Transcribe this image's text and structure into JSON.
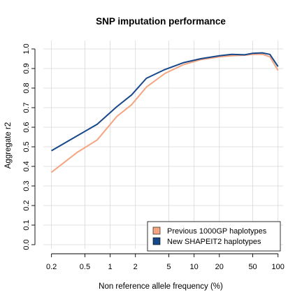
{
  "chart_data": {
    "type": "line",
    "title": "SNP imputation performance",
    "xlabel": "Non reference allele frequency (%)",
    "ylabel": "Aggregate r2",
    "x_scale": "log",
    "xlim": [
      0.2,
      100
    ],
    "ylim": [
      0,
      1
    ],
    "x_ticks": [
      {
        "value": 0.2,
        "label": "0.2"
      },
      {
        "value": 0.5,
        "label": "0.5"
      },
      {
        "value": 1,
        "label": "1"
      },
      {
        "value": 2,
        "label": "2"
      },
      {
        "value": 5,
        "label": "5"
      },
      {
        "value": 10,
        "label": "10"
      },
      {
        "value": 20,
        "label": "20"
      },
      {
        "value": 50,
        "label": "50"
      },
      {
        "value": 100,
        "label": "100"
      }
    ],
    "y_ticks": [
      {
        "value": 0,
        "label": "0.0"
      },
      {
        "value": 0.1,
        "label": "0.1"
      },
      {
        "value": 0.2,
        "label": "0.2"
      },
      {
        "value": 0.3,
        "label": "0.3"
      },
      {
        "value": 0.4,
        "label": "0.4"
      },
      {
        "value": 0.5,
        "label": "0.5"
      },
      {
        "value": 0.6,
        "label": "0.6"
      },
      {
        "value": 0.7,
        "label": "0.7"
      },
      {
        "value": 0.8,
        "label": "0.8"
      },
      {
        "value": 0.9,
        "label": "0.9"
      },
      {
        "value": 1,
        "label": "1.0"
      }
    ],
    "grid": true,
    "legend_position": "bottom-right",
    "series": [
      {
        "name": "Previous 1000GP haplotypes",
        "color": "#f4a582",
        "x": [
          0.2,
          0.4,
          0.7,
          1.2,
          1.8,
          2.7,
          4.5,
          7.5,
          12,
          20,
          28,
          40,
          50,
          65,
          80,
          100
        ],
        "y": [
          0.37,
          0.47,
          0.535,
          0.655,
          0.715,
          0.805,
          0.875,
          0.92,
          0.945,
          0.96,
          0.965,
          0.968,
          0.972,
          0.973,
          0.96,
          0.89
        ]
      },
      {
        "name": "New SHAPEIT2 haplotypes",
        "color": "#17488a",
        "x": [
          0.2,
          0.4,
          0.7,
          1.2,
          1.8,
          2.7,
          4.5,
          7.5,
          12,
          20,
          28,
          40,
          50,
          65,
          80,
          100
        ],
        "y": [
          0.48,
          0.555,
          0.615,
          0.705,
          0.765,
          0.85,
          0.895,
          0.93,
          0.95,
          0.965,
          0.972,
          0.97,
          0.978,
          0.98,
          0.972,
          0.91
        ]
      }
    ]
  }
}
